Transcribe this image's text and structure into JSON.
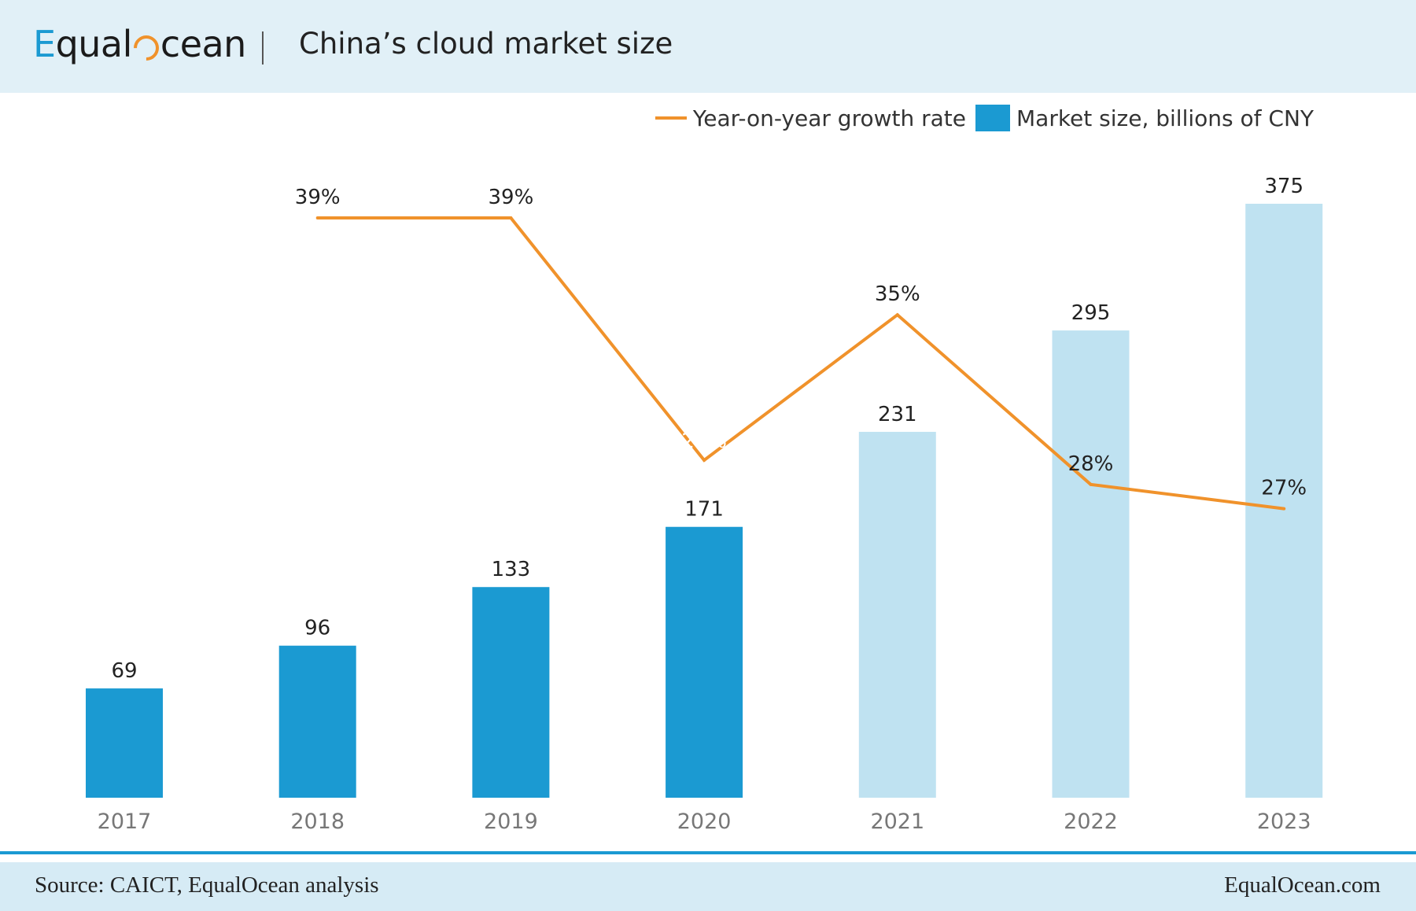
{
  "header": {
    "logo_text_e": "E",
    "logo_text_mid": "qual",
    "logo_text_end": "cean",
    "title": "China’s cloud market size"
  },
  "legend": {
    "line_label": "Year-on-year growth rate",
    "bar_label": "Market size, billions of CNY"
  },
  "colors": {
    "bar_actual": "#1b9ad2",
    "bar_forecast": "#bfe2f1",
    "line": "#f0922b",
    "accent": "#1b9ad2"
  },
  "chart_data": {
    "type": "bar",
    "categories": [
      "2017",
      "2018",
      "2019",
      "2020",
      "2021",
      "2022",
      "2023"
    ],
    "series": [
      {
        "name": "Market size, billions of CNY",
        "type": "bar",
        "values": [
          69,
          96,
          133,
          171,
          231,
          295,
          375
        ],
        "labels": [
          "69",
          "96",
          "133",
          "171",
          "231",
          "295",
          "375"
        ]
      },
      {
        "name": "Year-on-year growth rate",
        "type": "line",
        "values": [
          null,
          39,
          39,
          29,
          35,
          28,
          27
        ],
        "labels": [
          null,
          "39%",
          "39%",
          "29%",
          "35%",
          "28%",
          "27%"
        ]
      }
    ],
    "forecast_from_index": 4,
    "title": "China’s cloud market size",
    "legend_position": "top-right",
    "grid": false
  },
  "footer": {
    "source": "Source: CAICT, EqualOcean analysis",
    "site": "EqualOcean.com"
  }
}
